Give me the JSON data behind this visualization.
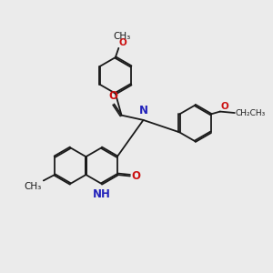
{
  "bg_color": "#ebebeb",
  "bond_color": "#1a1a1a",
  "N_color": "#2222bb",
  "O_color": "#cc1111",
  "font_size": 8.5,
  "font_size_small": 7.5,
  "line_width": 1.3,
  "dpi": 100,
  "xlim": [
    0,
    10
  ],
  "ylim": [
    0,
    10
  ],
  "ring_r": 0.68
}
